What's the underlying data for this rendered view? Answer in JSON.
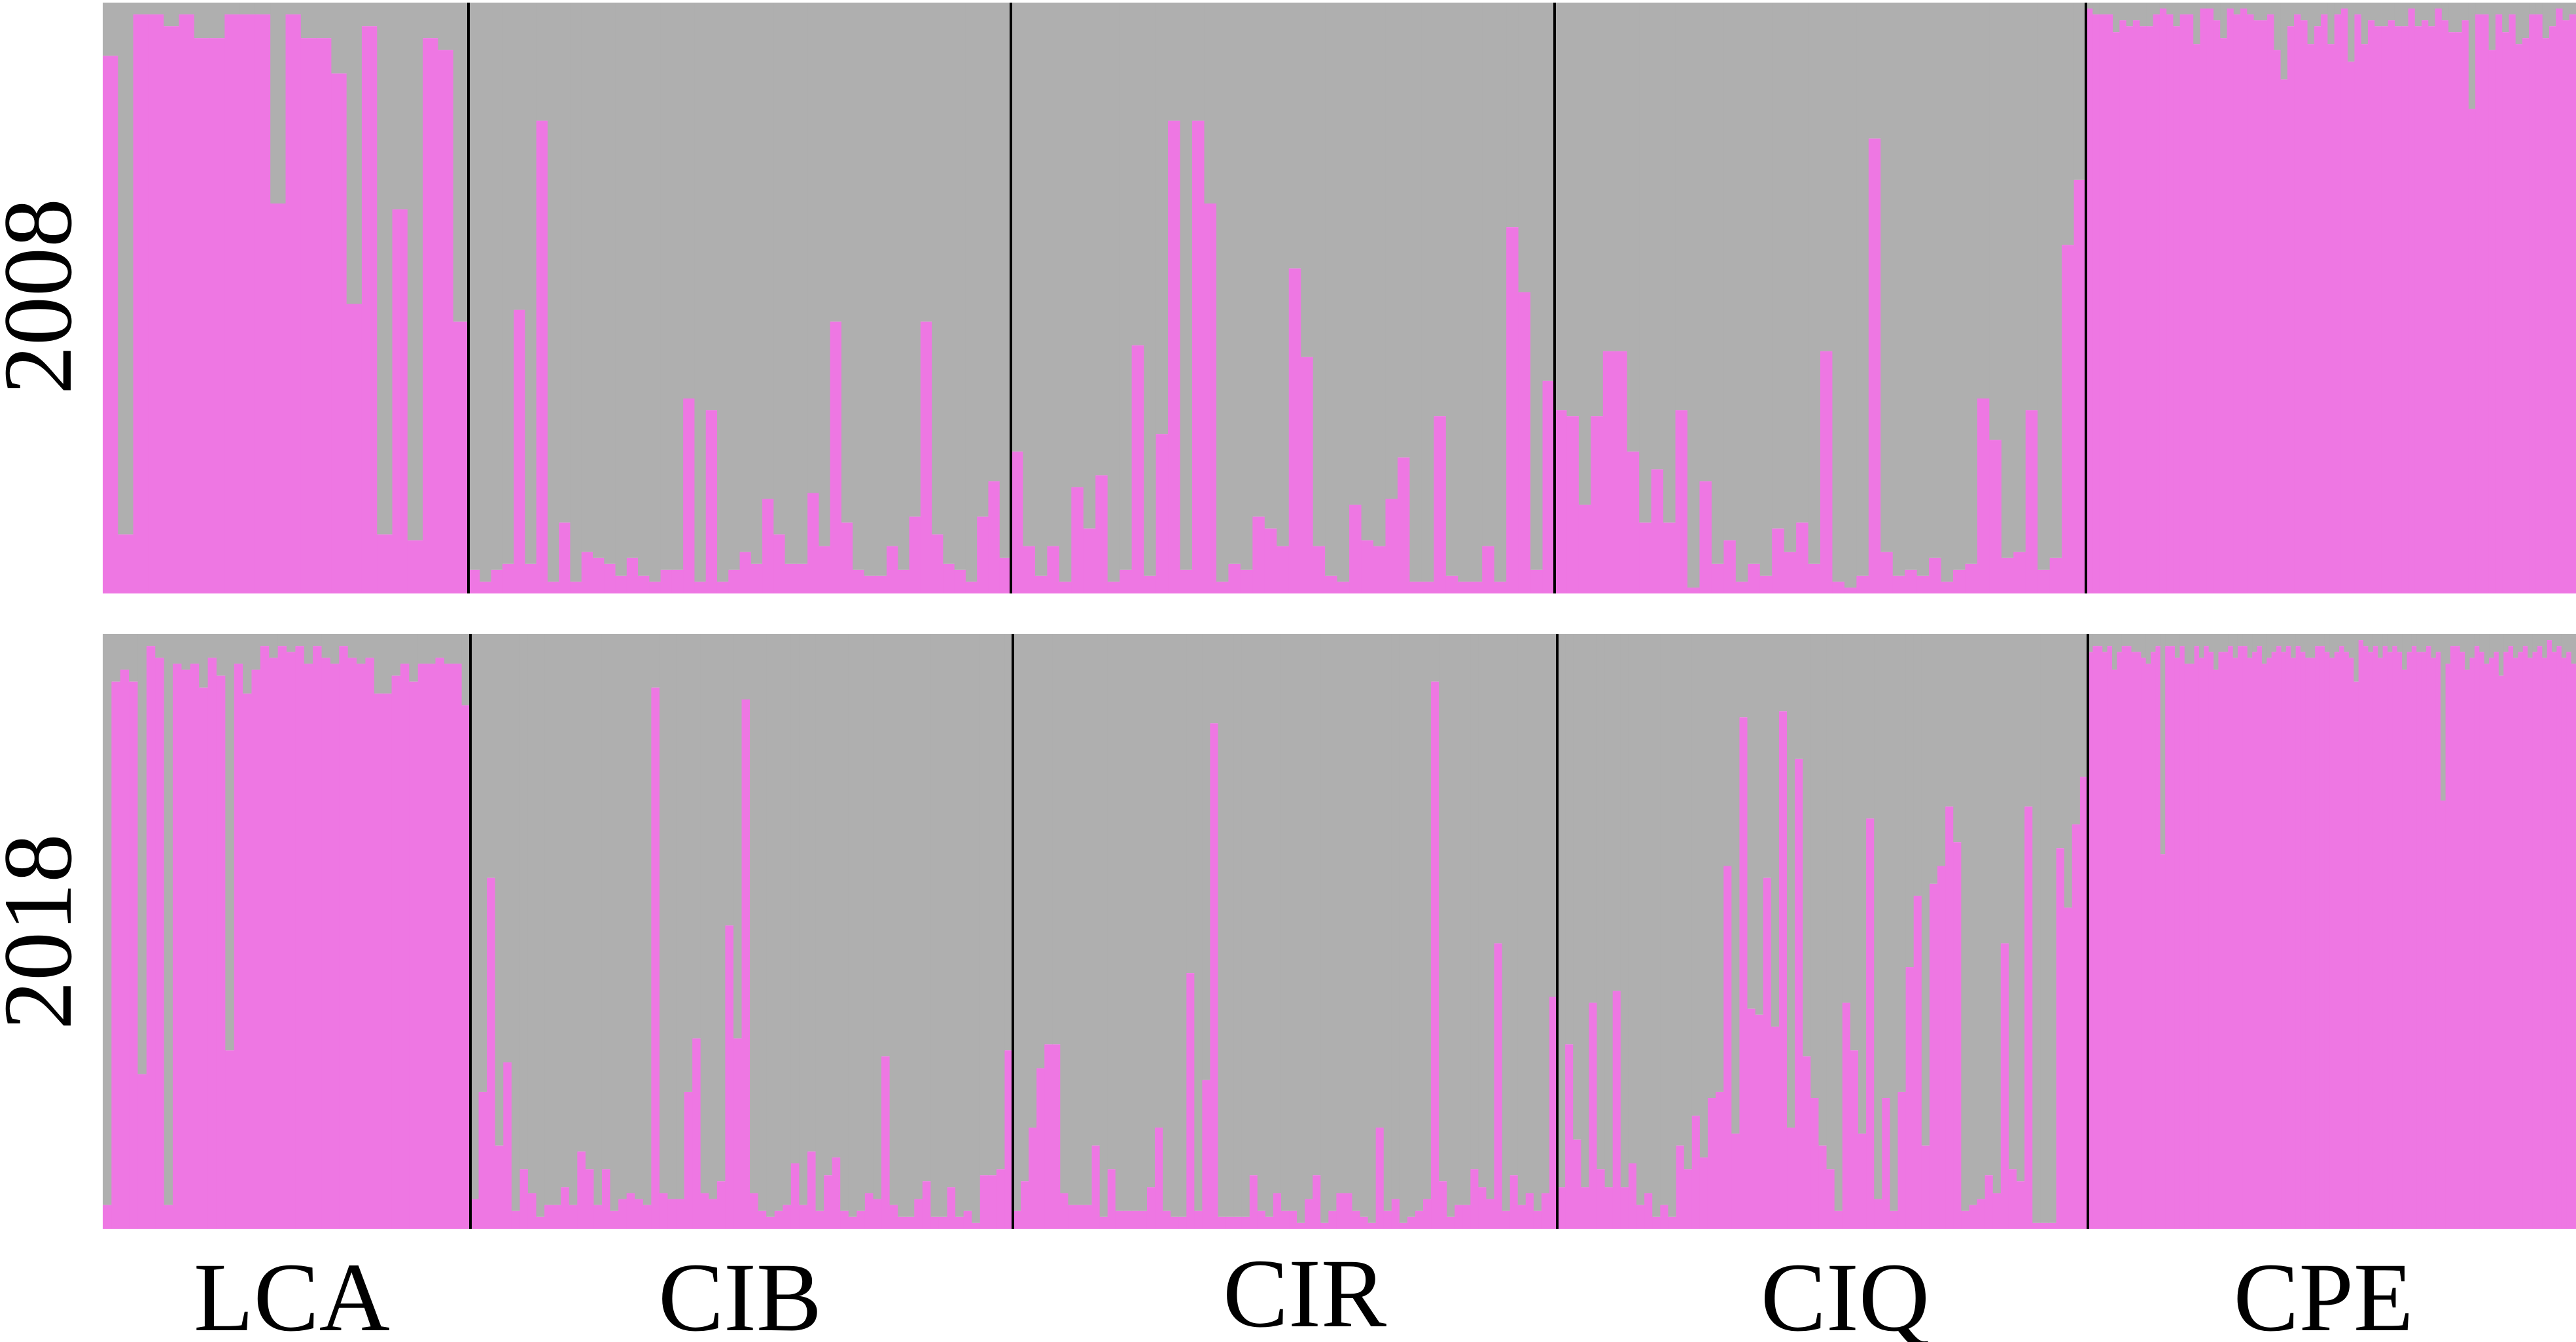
{
  "chart_data": [
    {
      "type": "bar",
      "stacked": true,
      "row_label": "2008",
      "ylim": [
        0,
        1
      ],
      "colors": {
        "cluster_1": "#ee77e3",
        "cluster_2": "#afafaf",
        "divider": "#000000"
      },
      "groups": [
        {
          "name": "LCA",
          "values": [
            0.91,
            0.1,
            0.98,
            0.98,
            0.96,
            0.98,
            0.94,
            0.94,
            0.98,
            0.98,
            0.98,
            0.66,
            0.98,
            0.94,
            0.94,
            0.88,
            0.49,
            0.96,
            0.1,
            0.65,
            0.09,
            0.94,
            0.92,
            0.46
          ]
        },
        {
          "name": "CIB",
          "values": [
            0.04,
            0.02,
            0.04,
            0.05,
            0.48,
            0.05,
            0.8,
            0.02,
            0.12,
            0.02,
            0.07,
            0.06,
            0.05,
            0.03,
            0.06,
            0.03,
            0.02,
            0.04,
            0.04,
            0.33,
            0.02,
            0.31,
            0.02,
            0.04,
            0.07,
            0.05,
            0.16,
            0.1,
            0.05,
            0.05,
            0.17,
            0.08,
            0.46,
            0.12,
            0.04,
            0.03,
            0.03,
            0.08,
            0.04,
            0.13,
            0.46,
            0.1,
            0.05,
            0.04,
            0.02,
            0.13,
            0.19,
            0.06
          ]
        },
        {
          "name": "CIR",
          "values": [
            0.24,
            0.08,
            0.03,
            0.08,
            0.02,
            0.18,
            0.11,
            0.2,
            0.02,
            0.04,
            0.42,
            0.03,
            0.27,
            0.8,
            0.04,
            0.8,
            0.66,
            0.02,
            0.05,
            0.04,
            0.13,
            0.11,
            0.08,
            0.55,
            0.4,
            0.08,
            0.03,
            0.02,
            0.15,
            0.09,
            0.08,
            0.16,
            0.23,
            0.02,
            0.02,
            0.3,
            0.03,
            0.02,
            0.02,
            0.08,
            0.02,
            0.62,
            0.51,
            0.04,
            0.36
          ]
        },
        {
          "name": "CIQ",
          "values": [
            0.31,
            0.3,
            0.15,
            0.3,
            0.41,
            0.41,
            0.24,
            0.12,
            0.21,
            0.12,
            0.31,
            0.01,
            0.19,
            0.05,
            0.09,
            0.02,
            0.05,
            0.03,
            0.11,
            0.07,
            0.12,
            0.05,
            0.41,
            0.02,
            0.01,
            0.03,
            0.77,
            0.07,
            0.03,
            0.04,
            0.03,
            0.06,
            0.02,
            0.04,
            0.05,
            0.33,
            0.26,
            0.06,
            0.07,
            0.31,
            0.04,
            0.06,
            0.59,
            0.7
          ]
        },
        {
          "name": "CPE",
          "values": [
            0.99,
            0.98,
            0.98,
            0.98,
            0.95,
            0.97,
            0.96,
            0.97,
            0.96,
            0.96,
            0.98,
            0.99,
            0.98,
            0.96,
            0.98,
            0.98,
            0.93,
            0.99,
            0.99,
            0.97,
            0.94,
            0.99,
            0.98,
            0.99,
            0.98,
            0.97,
            0.97,
            0.98,
            0.92,
            0.87,
            0.96,
            0.98,
            0.97,
            0.93,
            0.96,
            0.98,
            0.93,
            0.98,
            0.99,
            0.9,
            0.98,
            0.93,
            0.97,
            0.96,
            0.96,
            0.97,
            0.96,
            0.96,
            0.99,
            0.96,
            0.97,
            0.96,
            0.99,
            0.97,
            0.95,
            0.95,
            0.97,
            0.82,
            0.98,
            0.98,
            0.92,
            0.98,
            0.95,
            0.98,
            0.93,
            0.94,
            0.98,
            0.98,
            0.94,
            0.96,
            0.99,
            0.97,
            0.98
          ]
        }
      ]
    },
    {
      "type": "bar",
      "stacked": true,
      "row_label": "2018",
      "ylim": [
        0,
        1
      ],
      "colors": {
        "cluster_1": "#ee77e3",
        "cluster_2": "#afafaf",
        "divider": "#000000"
      },
      "groups": [
        {
          "name": "LCA",
          "values": [
            0.04,
            0.92,
            0.94,
            0.92,
            0.26,
            0.98,
            0.96,
            0.04,
            0.95,
            0.94,
            0.95,
            0.91,
            0.96,
            0.93,
            0.3,
            0.95,
            0.9,
            0.94,
            0.98,
            0.96,
            0.98,
            0.97,
            0.98,
            0.95,
            0.98,
            0.96,
            0.95,
            0.98,
            0.96,
            0.95,
            0.96,
            0.9,
            0.9,
            0.93,
            0.95,
            0.92,
            0.95,
            0.95,
            0.96,
            0.95,
            0.95,
            0.88
          ]
        },
        {
          "name": "CIB",
          "values": [
            0.05,
            0.23,
            0.59,
            0.14,
            0.28,
            0.03,
            0.1,
            0.06,
            0.02,
            0.04,
            0.04,
            0.07,
            0.04,
            0.13,
            0.1,
            0.04,
            0.1,
            0.03,
            0.05,
            0.06,
            0.05,
            0.04,
            0.91,
            0.06,
            0.05,
            0.05,
            0.23,
            0.32,
            0.06,
            0.05,
            0.08,
            0.51,
            0.32,
            0.89,
            0.06,
            0.03,
            0.02,
            0.03,
            0.04,
            0.11,
            0.04,
            0.13,
            0.03,
            0.09,
            0.12,
            0.03,
            0.02,
            0.03,
            0.06,
            0.05,
            0.29,
            0.04,
            0.02,
            0.02,
            0.05,
            0.08,
            0.02,
            0.02,
            0.07,
            0.02,
            0.03,
            0.01,
            0.09,
            0.09,
            0.1,
            0.3
          ]
        },
        {
          "name": "CIR",
          "values": [
            0.03,
            0.08,
            0.17,
            0.27,
            0.31,
            0.31,
            0.06,
            0.04,
            0.04,
            0.04,
            0.14,
            0.02,
            0.1,
            0.03,
            0.03,
            0.03,
            0.03,
            0.07,
            0.17,
            0.03,
            0.02,
            0.02,
            0.43,
            0.03,
            0.25,
            0.85,
            0.02,
            0.02,
            0.02,
            0.02,
            0.09,
            0.03,
            0.02,
            0.06,
            0.03,
            0.03,
            0.01,
            0.05,
            0.09,
            0.01,
            0.03,
            0.06,
            0.06,
            0.03,
            0.02,
            0.01,
            0.17,
            0.03,
            0.05,
            0.01,
            0.02,
            0.03,
            0.05,
            0.92,
            0.08,
            0.02,
            0.04,
            0.04,
            0.1,
            0.07,
            0.05,
            0.48,
            0.03,
            0.09,
            0.04,
            0.06,
            0.03,
            0.06,
            0.39
          ]
        },
        {
          "name": "CIQ",
          "values": [
            0.07,
            0.31,
            0.15,
            0.07,
            0.38,
            0.1,
            0.07,
            0.4,
            0.07,
            0.11,
            0.04,
            0.06,
            0.02,
            0.04,
            0.02,
            0.14,
            0.1,
            0.19,
            0.12,
            0.22,
            0.23,
            0.61,
            0.16,
            0.86,
            0.37,
            0.36,
            0.59,
            0.34,
            0.87,
            0.17,
            0.79,
            0.29,
            0.22,
            0.14,
            0.1,
            0.03,
            0.38,
            0.3,
            0.16,
            0.69,
            0.05,
            0.22,
            0.03,
            0.23,
            0.44,
            0.56,
            0.14,
            0.58,
            0.61,
            0.71,
            0.65,
            0.03,
            0.04,
            0.05,
            0.09,
            0.06,
            0.48,
            0.1,
            0.08,
            0.71,
            0.01,
            0.01,
            0.01,
            0.64,
            0.54,
            0.68,
            0.76
          ]
        },
        {
          "name": "CPE",
          "values": [
            0.97,
            0.98,
            0.98,
            0.97,
            0.98,
            0.94,
            0.97,
            0.98,
            0.98,
            0.97,
            0.97,
            0.96,
            0.95,
            0.97,
            0.98,
            0.63,
            0.98,
            0.98,
            0.96,
            0.98,
            0.95,
            0.95,
            0.98,
            0.96,
            0.98,
            0.97,
            0.94,
            0.97,
            0.97,
            0.98,
            0.96,
            0.98,
            0.98,
            0.96,
            0.97,
            0.98,
            0.95,
            0.96,
            0.97,
            0.98,
            0.97,
            0.98,
            0.96,
            0.98,
            0.97,
            0.96,
            0.96,
            0.98,
            0.98,
            0.97,
            0.96,
            0.97,
            0.98,
            0.97,
            0.96,
            0.92,
            0.99,
            0.98,
            0.97,
            0.98,
            0.96,
            0.98,
            0.97,
            0.98,
            0.97,
            0.94,
            0.97,
            0.98,
            0.97,
            0.97,
            0.98,
            0.96,
            0.97,
            0.72,
            0.95,
            0.98,
            0.98,
            0.97,
            0.94,
            0.96,
            0.98,
            0.97,
            0.95,
            0.96,
            0.97,
            0.93,
            0.97,
            0.98,
            0.96,
            0.97,
            0.98,
            0.96,
            0.97,
            0.98,
            0.96,
            0.99,
            0.97,
            0.98,
            0.96,
            0.97,
            0.95
          ]
        }
      ]
    }
  ]
}
